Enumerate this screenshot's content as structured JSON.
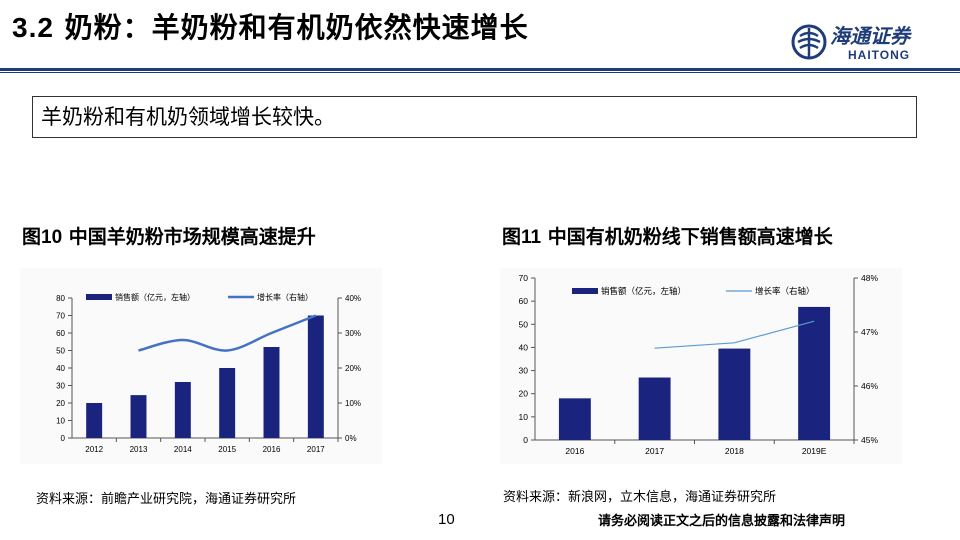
{
  "header": {
    "title_num": "3.2",
    "title_text": " 奶粉：羊奶粉和有机奶依然快速增长",
    "logo_cn": "海通证券",
    "logo_en": "HAITONG"
  },
  "summary": "羊奶粉和有机奶领域增长较快。",
  "chart1": {
    "label_prefix": "图",
    "label_num": "10",
    "label_text": " 中国羊奶粉市场规模高速提升",
    "source": "资料来源：前瞻产业研究院，海通证券研究所"
  },
  "chart2": {
    "label_prefix": "图",
    "label_num": "11",
    "label_text": " 中国有机奶粉线下销售额高速增长",
    "source": "资料来源：新浪网，立木信息，海通证券研究所"
  },
  "footer": {
    "page_number": "10",
    "disclaimer": "请务必阅读正文之后的信息披露和法律声明"
  },
  "colors": {
    "navy": "#1a237e",
    "line1": "#4472c4",
    "line2": "#5b9bd5",
    "rule": "#1f3c7a"
  },
  "chart_data": [
    {
      "type": "bar",
      "categories": [
        "2012",
        "2013",
        "2014",
        "2015",
        "2016",
        "2017"
      ],
      "series": [
        {
          "name": "销售额（亿元，左轴）",
          "values": [
            20,
            24.5,
            32,
            40,
            52,
            70
          ],
          "axis": "left",
          "kind": "bar"
        },
        {
          "name": "增长率（右轴）",
          "values": [
            null,
            25,
            28,
            25,
            30,
            35
          ],
          "axis": "right",
          "kind": "line"
        }
      ],
      "ylim": [
        0,
        80
      ],
      "yticks": [
        "0",
        "10",
        "20",
        "30",
        "40",
        "50",
        "60",
        "70",
        "80"
      ],
      "y2lim": [
        0,
        40
      ],
      "y2ticks": [
        "0%",
        "10%",
        "20%",
        "30%",
        "40%"
      ],
      "legend": "top"
    },
    {
      "type": "bar",
      "categories": [
        "2016",
        "2017",
        "2018",
        "2019E"
      ],
      "series": [
        {
          "name": "销售额（亿元，左轴）",
          "values": [
            18,
            27,
            39.5,
            57.5
          ],
          "axis": "left",
          "kind": "bar"
        },
        {
          "name": "增长率（右轴）",
          "values": [
            null,
            46.7,
            46.8,
            47.2
          ],
          "axis": "right",
          "kind": "line"
        }
      ],
      "ylim": [
        0,
        70
      ],
      "yticks": [
        "0",
        "10",
        "20",
        "30",
        "40",
        "50",
        "60",
        "70"
      ],
      "y2lim": [
        45,
        48
      ],
      "y2ticks": [
        "45%",
        "46%",
        "47%",
        "48%"
      ],
      "legend": "top"
    }
  ]
}
